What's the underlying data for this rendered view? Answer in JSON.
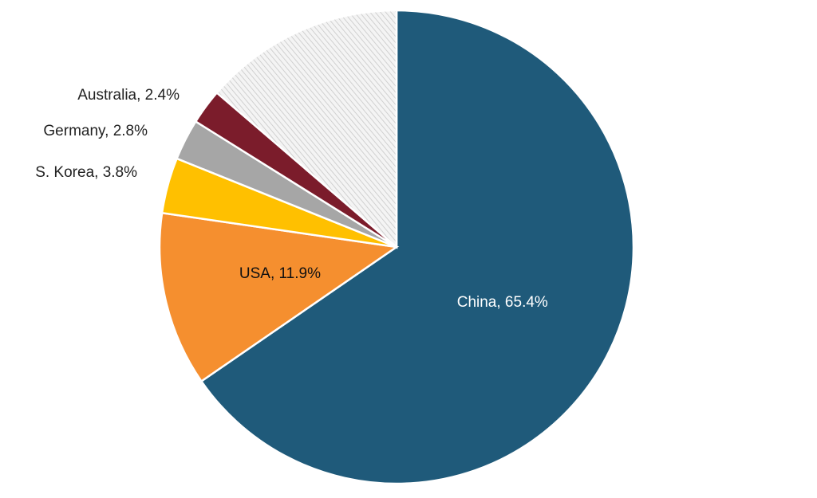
{
  "chart_data": {
    "type": "pie",
    "categories": [
      "China",
      "USA",
      "S. Korea",
      "Germany",
      "Australia",
      null
    ],
    "values": [
      65.4,
      11.9,
      3.8,
      2.8,
      2.4,
      13.7
    ],
    "value_labels": [
      "China, 65.4%",
      "USA, 11.9%",
      "S. Korea, 3.8%",
      "Germany, 2.8%",
      "Australia, 2.4%",
      null
    ],
    "colors": [
      "#1f5a7a",
      "#f58f2f",
      "#ffc000",
      "#a6a6a6",
      "#7b1c2b",
      "hatch"
    ]
  }
}
